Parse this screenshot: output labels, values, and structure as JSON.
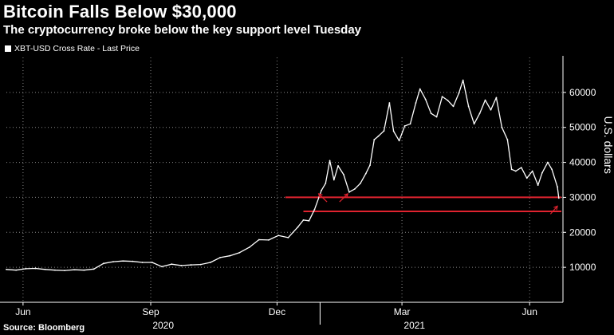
{
  "header": {
    "title": "Bitcoin Falls Below $30,000",
    "subtitle": "The cryptocurrency broke below the key support level Tuesday"
  },
  "legend": {
    "label": "XBT-USD Cross Rate - Last Price"
  },
  "footer": {
    "source": "Source: Bloomberg"
  },
  "colors": {
    "background": "#000000",
    "series": "#ffffff",
    "support_lines": "#e0232f",
    "gridlines": "#8a8a8a"
  },
  "chart_data": {
    "type": "line",
    "ylabel": "U.S. dollars",
    "ylim": [
      0,
      70000
    ],
    "y_ticks": [
      10000,
      20000,
      30000,
      40000,
      50000,
      60000
    ],
    "y_tick_labels": [
      "10000",
      "20000",
      "30000",
      "40000",
      "50000",
      "60000"
    ],
    "x_range": [
      "2020-05-20",
      "2021-06-25"
    ],
    "x_ticks": [
      {
        "date": "2020-06-01",
        "label": "Jun"
      },
      {
        "date": "2020-09-01",
        "label": "Sep"
      },
      {
        "date": "2020-12-01",
        "label": "Dec"
      },
      {
        "date": "2021-03-01",
        "label": "Mar"
      },
      {
        "date": "2021-06-01",
        "label": "Jun"
      }
    ],
    "year_labels": [
      {
        "center": "2020-09-10",
        "label": "2020"
      },
      {
        "center": "2021-03-10",
        "label": "2021"
      }
    ],
    "year_divider": "2021-01-01",
    "grid": true,
    "legend_position": "top-left",
    "series": [
      {
        "name": "XBT-USD Cross Rate - Last Price",
        "x": [
          "2020-05-20",
          "2020-05-27",
          "2020-06-03",
          "2020-06-10",
          "2020-06-17",
          "2020-06-24",
          "2020-07-01",
          "2020-07-08",
          "2020-07-15",
          "2020-07-22",
          "2020-07-29",
          "2020-08-05",
          "2020-08-12",
          "2020-08-19",
          "2020-08-26",
          "2020-09-02",
          "2020-09-09",
          "2020-09-16",
          "2020-09-23",
          "2020-09-30",
          "2020-10-07",
          "2020-10-14",
          "2020-10-21",
          "2020-10-28",
          "2020-11-04",
          "2020-11-11",
          "2020-11-18",
          "2020-11-25",
          "2020-12-02",
          "2020-12-09",
          "2020-12-16",
          "2020-12-20",
          "2020-12-24",
          "2020-12-28",
          "2021-01-02",
          "2021-01-05",
          "2021-01-08",
          "2021-01-11",
          "2021-01-14",
          "2021-01-18",
          "2021-01-22",
          "2021-01-26",
          "2021-01-30",
          "2021-02-03",
          "2021-02-06",
          "2021-02-09",
          "2021-02-12",
          "2021-02-16",
          "2021-02-20",
          "2021-02-23",
          "2021-02-27",
          "2021-03-03",
          "2021-03-07",
          "2021-03-11",
          "2021-03-14",
          "2021-03-18",
          "2021-03-22",
          "2021-03-26",
          "2021-03-30",
          "2021-04-03",
          "2021-04-07",
          "2021-04-11",
          "2021-04-14",
          "2021-04-18",
          "2021-04-22",
          "2021-04-26",
          "2021-04-30",
          "2021-05-04",
          "2021-05-08",
          "2021-05-12",
          "2021-05-16",
          "2021-05-19",
          "2021-05-22",
          "2021-05-26",
          "2021-05-30",
          "2021-06-03",
          "2021-06-07",
          "2021-06-10",
          "2021-06-14",
          "2021-06-17",
          "2021-06-21",
          "2021-06-22"
        ],
        "values": [
          9400,
          9200,
          9600,
          9700,
          9400,
          9200,
          9100,
          9300,
          9200,
          9500,
          11100,
          11600,
          11800,
          11700,
          11400,
          11400,
          10200,
          10900,
          10500,
          10700,
          10800,
          11400,
          12800,
          13300,
          14200,
          15700,
          17900,
          17800,
          19100,
          18500,
          21500,
          23500,
          23300,
          26500,
          32000,
          34000,
          40500,
          35000,
          39000,
          36500,
          31500,
          32400,
          34000,
          36800,
          39200,
          46500,
          47500,
          49000,
          57000,
          48900,
          46200,
          50400,
          51000,
          57000,
          61000,
          58000,
          54000,
          53000,
          58800,
          57700,
          56000,
          59800,
          63500,
          56000,
          51000,
          54000,
          57800,
          55000,
          58500,
          50000,
          46500,
          38000,
          37500,
          38500,
          35500,
          37500,
          33500,
          37000,
          40000,
          38000,
          33000,
          29800
        ]
      }
    ],
    "support_levels": [
      {
        "value": 30000,
        "from": "2020-12-07"
      },
      {
        "value": 26000,
        "from": "2020-12-20"
      }
    ],
    "annotations": [
      {
        "type": "arrow",
        "from_date": "2021-01-06",
        "to_date": "2020-12-31",
        "value": 31000
      },
      {
        "type": "arrow",
        "from_date": "2021-01-15",
        "to_date": "2021-01-21",
        "value": 31000
      },
      {
        "type": "arrow",
        "from_date": "2021-06-16",
        "to_date": "2021-06-21",
        "value": 27500
      }
    ]
  }
}
